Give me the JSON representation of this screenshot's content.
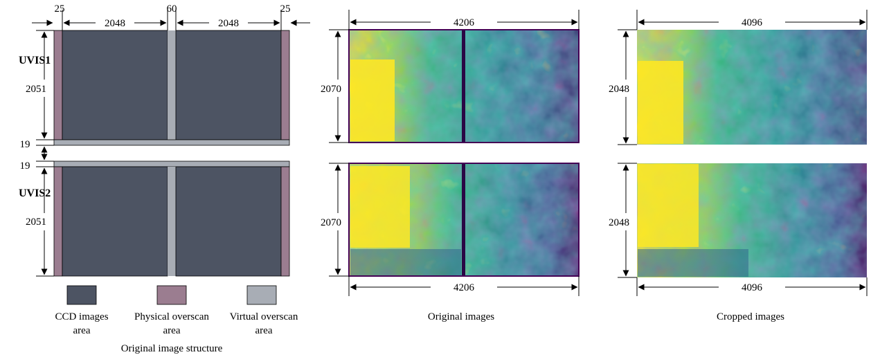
{
  "colors": {
    "ccd": "#4d5463",
    "physical_overscan": "#9b7d90",
    "virtual_overscan": "#a8adb5",
    "image_low": "#440154",
    "image_mid": "#21908d",
    "image_high": "#fde725"
  },
  "structure": {
    "widths": {
      "left_overscan": "25",
      "left_ccd": "2048",
      "gap": "60",
      "right_ccd": "2048",
      "right_overscan": "25"
    },
    "uvis1": {
      "label": "UVIS1",
      "height": "2051",
      "bottom_virtual": "19"
    },
    "uvis2": {
      "label": "UVIS2",
      "height": "2051",
      "top_virtual": "19"
    }
  },
  "legend": {
    "ccd": {
      "line1": "CCD images",
      "line2": "area"
    },
    "physical": {
      "line1": "Physical overscan",
      "line2": "area"
    },
    "virtual": {
      "line1": "Virtual overscan",
      "line2": "area"
    }
  },
  "original_images": {
    "width_top": "4206",
    "width_bottom": "4206",
    "height_top": "2070",
    "height_bottom": "2070"
  },
  "cropped_images": {
    "width_top": "4096",
    "width_bottom": "4096",
    "height_top": "2048",
    "height_bottom": "2048"
  },
  "captions": {
    "structure": "Original image structure",
    "original": "Original images",
    "cropped": "Cropped images"
  }
}
